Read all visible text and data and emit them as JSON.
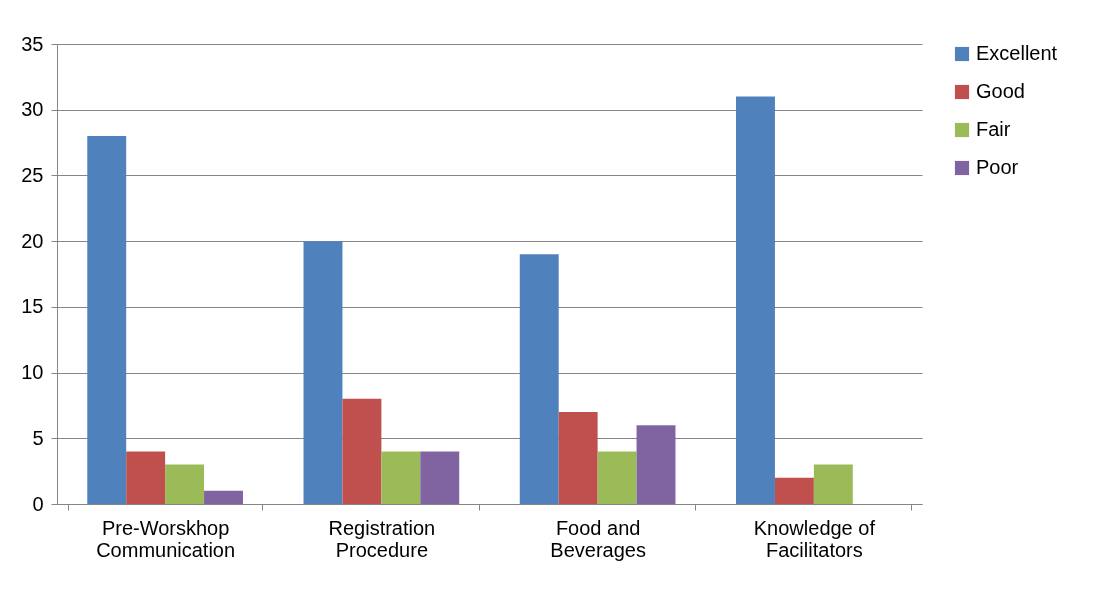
{
  "chart_data": {
    "type": "bar",
    "categories": [
      "Pre-Worskhop Communication",
      "Registration Procedure",
      "Food and Beverages",
      "Knowledge of Facilitators"
    ],
    "series": [
      {
        "name": "Excellent",
        "color": "#4f81bd",
        "values": [
          28,
          20,
          19,
          31
        ]
      },
      {
        "name": "Good",
        "color": "#c0504d",
        "values": [
          4,
          8,
          7,
          2
        ]
      },
      {
        "name": "Fair",
        "color": "#9bbb59",
        "values": [
          3,
          4,
          4,
          3
        ]
      },
      {
        "name": "Poor",
        "color": "#8064a2",
        "values": [
          1,
          4,
          6,
          0
        ]
      }
    ],
    "ylim": [
      0,
      35
    ],
    "yticks": [
      0,
      5,
      10,
      15,
      20,
      25,
      30,
      35
    ],
    "grid": "y",
    "legend": "right"
  }
}
